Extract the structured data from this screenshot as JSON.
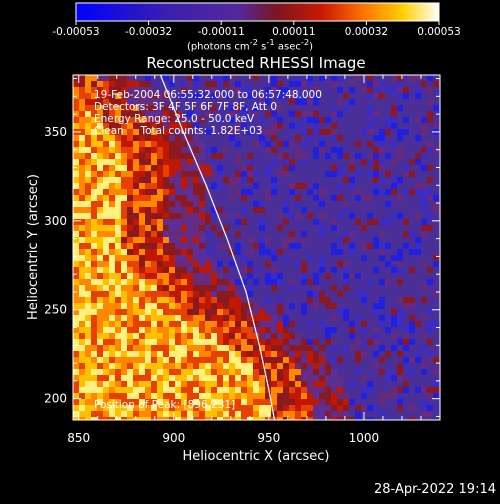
{
  "chart_data": {
    "type": "heatmap",
    "title": "Reconstructed RHESSI Image",
    "xlabel": "Heliocentric X (arcsec)",
    "ylabel": "Heliocentric Y (arcsec)",
    "xlim": [
      847,
      1040
    ],
    "ylim": [
      188,
      382
    ],
    "x_ticks": [
      "850",
      "900",
      "950",
      "1000"
    ],
    "x_tick_values": [
      850,
      900,
      950,
      1000
    ],
    "y_ticks": [
      "200",
      "250",
      "300",
      "350"
    ],
    "y_tick_values": [
      200,
      250,
      300,
      350
    ],
    "colorbar": {
      "range": [
        -0.00053,
        0.00053
      ],
      "tick_labels": [
        "-0.00053",
        "-0.00032",
        "-0.00011",
        "0.00011",
        "0.00032",
        "0.00053"
      ],
      "unit_html": "(photons cm<sup>-2</sup> s<sup>-1</sup> asec<sup>-2</sup>)",
      "colors": [
        "#0000ff",
        "#3a1fb0",
        "#55289a",
        "#7a1620",
        "#cc1a00",
        "#ff7a00",
        "#ffd000",
        "#ffffff"
      ]
    },
    "annotations": {
      "time": "19-Feb-2004 06:55:32.000 to 06:57:48.000",
      "detectors": "Detectors: 3F 4F 5F 6F 7F 8F, Att 0",
      "energy": "Energy Range: 25.0 - 50.0 keV",
      "clean": "Clean     Total counts: 1.82E+03",
      "peak": "Position of Peak: [896,231]"
    },
    "peak_position": [
      896,
      231
    ],
    "limb_curve": [
      [
        893,
        382
      ],
      [
        905,
        350
      ],
      [
        917,
        320
      ],
      [
        928,
        290
      ],
      [
        938,
        260
      ],
      [
        945,
        230
      ],
      [
        950,
        205
      ],
      [
        953,
        188
      ]
    ]
  },
  "footer": {
    "timestamp": "28-Apr-2022 19:14"
  }
}
